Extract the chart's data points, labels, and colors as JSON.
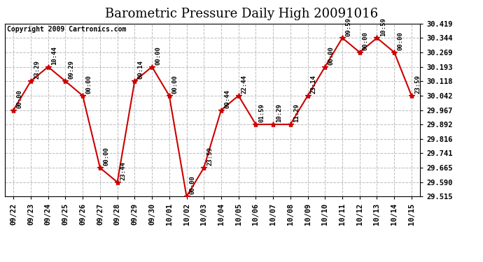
{
  "title": "Barometric Pressure Daily High 20091016",
  "copyright": "Copyright 2009 Cartronics.com",
  "dates": [
    "09/22",
    "09/23",
    "09/24",
    "09/25",
    "09/26",
    "09/27",
    "09/28",
    "09/29",
    "09/30",
    "10/01",
    "10/02",
    "10/03",
    "10/04",
    "10/05",
    "10/06",
    "10/07",
    "10/08",
    "10/09",
    "10/10",
    "10/11",
    "10/12",
    "10/13",
    "10/14",
    "10/15"
  ],
  "values": [
    29.967,
    30.118,
    30.193,
    30.118,
    30.042,
    29.665,
    29.59,
    30.118,
    30.193,
    30.042,
    29.515,
    29.665,
    29.967,
    30.042,
    29.892,
    29.892,
    29.892,
    30.042,
    30.193,
    30.344,
    30.269,
    30.344,
    30.269,
    30.042
  ],
  "annotations": [
    "00:00",
    "23:29",
    "10:44",
    "09:29",
    "00:00",
    "00:00",
    "23:44",
    "09:14",
    "00:00",
    "00:00",
    "00:00",
    "23:59",
    "09:44",
    "22:44",
    "01:59",
    "10:29",
    "11:29",
    "23:14",
    "00:00",
    "09:59",
    "00:00",
    "10:59",
    "00:00",
    "23:59"
  ],
  "ylim": [
    29.515,
    30.419
  ],
  "yticks": [
    29.515,
    29.59,
    29.665,
    29.741,
    29.816,
    29.892,
    29.967,
    30.042,
    30.118,
    30.193,
    30.269,
    30.344,
    30.419
  ],
  "line_color": "#cc0000",
  "marker_color": "#cc0000",
  "bg_color": "#ffffff",
  "grid_color": "#bbbbbb",
  "title_fontsize": 13,
  "copyright_fontsize": 7,
  "annotation_fontsize": 6.5,
  "tick_fontsize": 7.5
}
